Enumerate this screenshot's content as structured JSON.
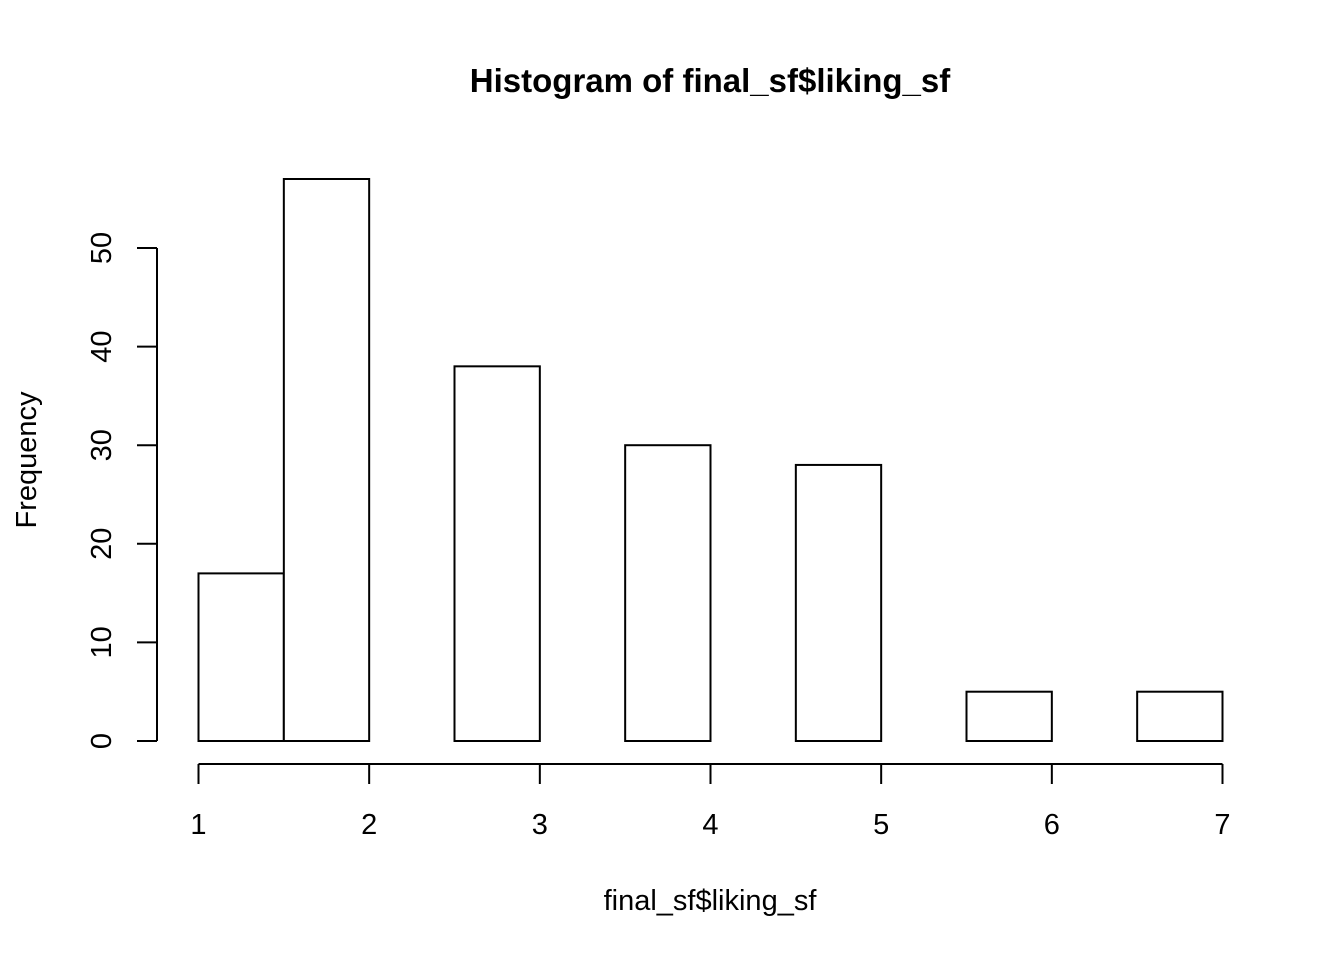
{
  "chart_data": {
    "type": "bar",
    "title": "Histogram of final_sf$liking_sf",
    "xlabel": "final_sf$liking_sf",
    "ylabel": "Frequency",
    "bins": [
      {
        "start": 1.0,
        "end": 1.5,
        "count": 17
      },
      {
        "start": 1.5,
        "end": 2.0,
        "count": 57
      },
      {
        "start": 2.0,
        "end": 2.5,
        "count": 0
      },
      {
        "start": 2.5,
        "end": 3.0,
        "count": 38
      },
      {
        "start": 3.0,
        "end": 3.5,
        "count": 0
      },
      {
        "start": 3.5,
        "end": 4.0,
        "count": 30
      },
      {
        "start": 4.0,
        "end": 4.5,
        "count": 0
      },
      {
        "start": 4.5,
        "end": 5.0,
        "count": 28
      },
      {
        "start": 5.0,
        "end": 5.5,
        "count": 0
      },
      {
        "start": 5.5,
        "end": 6.0,
        "count": 5
      },
      {
        "start": 6.0,
        "end": 6.5,
        "count": 0
      },
      {
        "start": 6.5,
        "end": 7.0,
        "count": 5
      }
    ],
    "xlim": [
      1,
      7
    ],
    "ylim": [
      0,
      57
    ],
    "x_ticks": [
      "1",
      "2",
      "3",
      "4",
      "5",
      "6",
      "7"
    ],
    "y_ticks": [
      "0",
      "10",
      "20",
      "30",
      "40",
      "50"
    ],
    "grid": false,
    "bar_fill": "#ffffff",
    "bar_stroke": "#000000"
  }
}
